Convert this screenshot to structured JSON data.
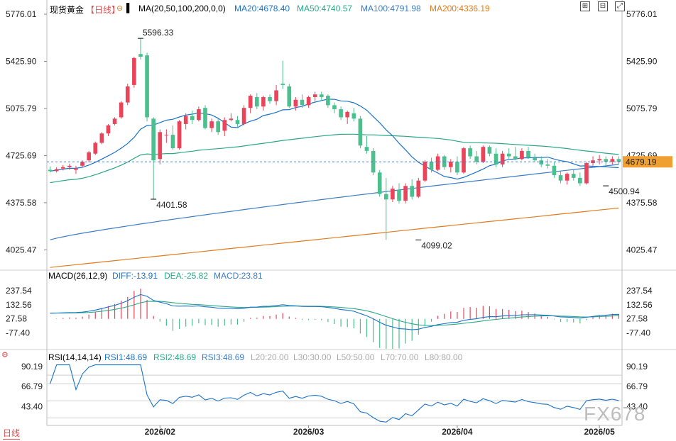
{
  "header": {
    "instrument": "现货黄金",
    "period_label": "【日线】",
    "ma_label": "MA(20,50,100,200,0,0)",
    "ma20": "MA20:4678.40",
    "ma50": "MA50:4740.57",
    "ma100": "MA100:4791.98",
    "ma200": "MA200:4336.19"
  },
  "macd_header": {
    "name": "MACD(26,12,9)",
    "diff": "DIFF:-13.91",
    "dea": "DEA:-25.82",
    "macd": "MACD:23.81"
  },
  "rsi_header": {
    "name": "RSI(14,14,14)",
    "rsi1": "RSI1:48.69",
    "rsi2": "RSI2:48.69",
    "rsi3": "RSI3:48.69",
    "l20": "L20:20.00",
    "l30": "L30:30.00",
    "l50": "L50:50.00",
    "l70": "L70:70.00",
    "l80": "L80:80.00"
  },
  "footer": {
    "period_button": "日线"
  },
  "watermark": "FX678",
  "colors": {
    "up": "#e8445a",
    "down": "#4cbf8f",
    "ma20": "#1a73c8",
    "ma50": "#2aa888",
    "ma100": "#3d7dc4",
    "ma200": "#e07b20",
    "last_price_bg": "#f0a030"
  },
  "chart_data": [
    {
      "type": "candlestick",
      "title": "现货黄金",
      "price_ticks": [
        5776.01,
        5425.9,
        5075.79,
        4725.69,
        4375.58,
        4025.47
      ],
      "ylim": [
        3880,
        5776.01
      ],
      "last_price": "4679.19",
      "date_ticks": [
        "2026/02",
        "2026/03",
        "2026/04",
        "2026/05"
      ],
      "date_tick_index": [
        17,
        40,
        63,
        85
      ],
      "annotations": [
        {
          "label": "5596.33",
          "index": 14,
          "value": 5596.33,
          "kind": "high"
        },
        {
          "label": "4401.58",
          "index": 16,
          "value": 4401.58,
          "kind": "low"
        },
        {
          "label": "4099.02",
          "index": 57,
          "value": 4099.02,
          "kind": "low"
        },
        {
          "label": "4500.94",
          "index": 86,
          "value": 4500.94,
          "kind": "low"
        }
      ],
      "ohlc": [
        [
          4620,
          4645,
          4600,
          4610
        ],
        [
          4610,
          4640,
          4600,
          4625
        ],
        [
          4630,
          4655,
          4615,
          4640
        ],
        [
          4640,
          4665,
          4620,
          4650
        ],
        [
          4620,
          4650,
          4590,
          4630
        ],
        [
          4650,
          4690,
          4640,
          4680
        ],
        [
          4690,
          4760,
          4675,
          4750
        ],
        [
          4740,
          4830,
          4730,
          4820
        ],
        [
          4820,
          4900,
          4810,
          4890
        ],
        [
          4890,
          4960,
          4870,
          4950
        ],
        [
          4960,
          5010,
          4950,
          5000
        ],
        [
          5010,
          5130,
          5000,
          5120
        ],
        [
          5120,
          5260,
          5100,
          5240
        ],
        [
          5250,
          5460,
          5230,
          5450
        ],
        [
          5480,
          5596,
          5440,
          5460
        ],
        [
          5470,
          5490,
          4980,
          5010
        ],
        [
          5000,
          5010,
          4401,
          4690
        ],
        [
          4700,
          4920,
          4660,
          4900
        ],
        [
          4880,
          4920,
          4820,
          4880
        ],
        [
          4880,
          4950,
          4770,
          4780
        ],
        [
          4780,
          4990,
          4770,
          4980
        ],
        [
          4960,
          5040,
          4920,
          5020
        ],
        [
          5020,
          5060,
          4960,
          4990
        ],
        [
          4990,
          5090,
          4980,
          5070
        ],
        [
          5080,
          5100,
          4920,
          4930
        ],
        [
          4930,
          5000,
          4900,
          4980
        ],
        [
          4980,
          5000,
          4880,
          4900
        ],
        [
          4910,
          5010,
          4870,
          4990
        ],
        [
          4990,
          5040,
          4980,
          5000
        ],
        [
          4990,
          5020,
          4940,
          4960
        ],
        [
          4960,
          5100,
          4950,
          5080
        ],
        [
          5080,
          5180,
          5040,
          5170
        ],
        [
          5160,
          5190,
          5070,
          5090
        ],
        [
          5090,
          5170,
          5060,
          5160
        ],
        [
          5160,
          5180,
          5110,
          5130
        ],
        [
          5130,
          5250,
          5100,
          5210
        ],
        [
          5260,
          5430,
          5220,
          5250
        ],
        [
          5240,
          5260,
          5080,
          5090
        ],
        [
          5090,
          5160,
          5060,
          5140
        ],
        [
          5140,
          5180,
          5080,
          5100
        ],
        [
          5100,
          5170,
          5080,
          5160
        ],
        [
          5160,
          5200,
          5130,
          5180
        ],
        [
          5180,
          5200,
          5130,
          5160
        ],
        [
          5170,
          5180,
          5080,
          5100
        ],
        [
          5100,
          5120,
          5040,
          5070
        ],
        [
          5070,
          5090,
          4990,
          5010
        ],
        [
          5010,
          5060,
          4960,
          5050
        ],
        [
          5040,
          5080,
          4980,
          5000
        ],
        [
          5000,
          5020,
          4780,
          4800
        ],
        [
          4790,
          4870,
          4740,
          4760
        ],
        [
          4760,
          4780,
          4580,
          4600
        ],
        [
          4600,
          4620,
          4420,
          4440
        ],
        [
          4440,
          4560,
          4099,
          4400
        ],
        [
          4400,
          4500,
          4380,
          4480
        ],
        [
          4470,
          4520,
          4370,
          4390
        ],
        [
          4390,
          4520,
          4370,
          4500
        ],
        [
          4500,
          4550,
          4400,
          4420
        ],
        [
          4420,
          4560,
          4410,
          4540
        ],
        [
          4540,
          4690,
          4530,
          4680
        ],
        [
          4680,
          4710,
          4600,
          4620
        ],
        [
          4620,
          4740,
          4610,
          4720
        ],
        [
          4720,
          4730,
          4620,
          4640
        ],
        [
          4640,
          4700,
          4600,
          4680
        ],
        [
          4680,
          4720,
          4580,
          4600
        ],
        [
          4600,
          4790,
          4590,
          4780
        ],
        [
          4780,
          4800,
          4700,
          4720
        ],
        [
          4720,
          4760,
          4660,
          4680
        ],
        [
          4680,
          4800,
          4670,
          4790
        ],
        [
          4790,
          4800,
          4720,
          4740
        ],
        [
          4740,
          4780,
          4640,
          4660
        ],
        [
          4660,
          4760,
          4640,
          4740
        ],
        [
          4740,
          4780,
          4700,
          4720
        ],
        [
          4720,
          4790,
          4690,
          4700
        ],
        [
          4700,
          4780,
          4690,
          4760
        ],
        [
          4760,
          4790,
          4700,
          4710
        ],
        [
          4710,
          4740,
          4680,
          4690
        ],
        [
          4690,
          4720,
          4640,
          4660
        ],
        [
          4660,
          4700,
          4630,
          4650
        ],
        [
          4650,
          4680,
          4560,
          4580
        ],
        [
          4580,
          4610,
          4520,
          4540
        ],
        [
          4540,
          4600,
          4510,
          4590
        ],
        [
          4590,
          4620,
          4540,
          4560
        ],
        [
          4560,
          4600,
          4500,
          4520
        ],
        [
          4520,
          4680,
          4510,
          4670
        ],
        [
          4670,
          4720,
          4650,
          4690
        ],
        [
          4690,
          4730,
          4660,
          4700
        ],
        [
          4700,
          4720,
          4650,
          4680
        ],
        [
          4680,
          4720,
          4660,
          4700
        ],
        [
          4700,
          4720,
          4660,
          4679
        ]
      ]
    },
    {
      "type": "bar",
      "title": "MACD(26,12,9)",
      "y_ticks": [
        237.54,
        132.56,
        27.58,
        -77.4
      ],
      "ylim": [
        -195,
        300
      ]
    },
    {
      "type": "line",
      "title": "RSI(14,14,14)",
      "y_ticks": [
        90.19,
        66.79,
        43.4
      ],
      "ylim": [
        23,
        95
      ]
    }
  ]
}
